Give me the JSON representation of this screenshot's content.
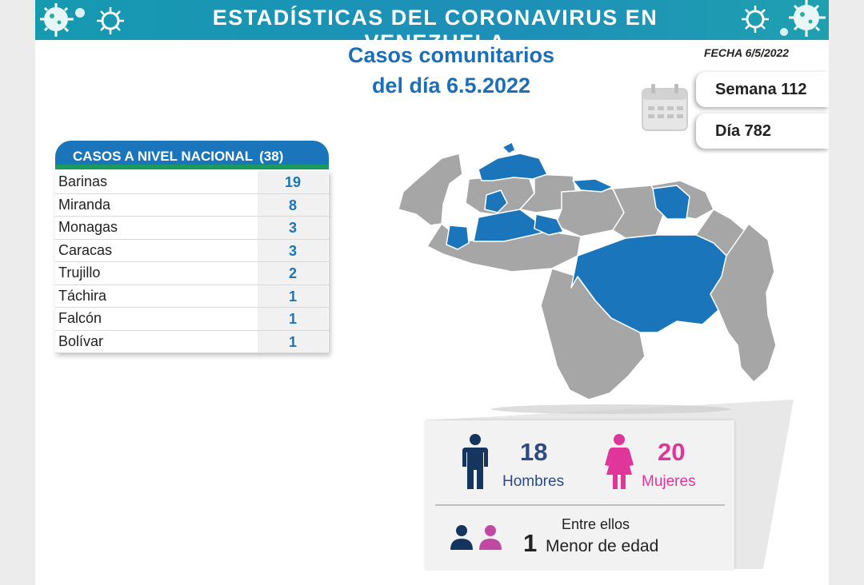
{
  "header": {
    "title": "ESTADÍSTICAS DEL CORONAVIRUS EN VENEZUELA",
    "subtitle_line1": "Casos comunitarios",
    "subtitle_line2": "del día 6.5.2022",
    "fecha": "FECHA 6/5/2022"
  },
  "badges": {
    "semana": "Semana 112",
    "dia": "Día 782"
  },
  "table": {
    "title": "CASOS A NIVEL NACIONAL",
    "total": "(38)",
    "rows": [
      {
        "state": "Barinas",
        "cases": "19"
      },
      {
        "state": "Miranda",
        "cases": "8"
      },
      {
        "state": "Monagas",
        "cases": "3"
      },
      {
        "state": "Caracas",
        "cases": "3"
      },
      {
        "state": "Trujillo",
        "cases": "2"
      },
      {
        "state": "Táchira",
        "cases": "1"
      },
      {
        "state": "Falcón",
        "cases": "1"
      },
      {
        "state": "Bolívar",
        "cases": "1"
      }
    ]
  },
  "stats": {
    "men_count": "18",
    "men_label": "Hombres",
    "women_count": "20",
    "women_label": "Mujeres",
    "between_label": "Entre ellos",
    "minor_count": "1",
    "minor_label": "Menor de edad"
  },
  "colors": {
    "banner": "#1d8fb8",
    "primary_blue": "#1b75ba",
    "green_accent": "#1a9a5e",
    "men": "#16355e",
    "women": "#e0369a",
    "map_highlight": "#1b75ba",
    "map_gray": "#a6a6a6"
  },
  "icons": {
    "virus": "virus-icon",
    "calendar": "calendar-icon",
    "man": "man-icon",
    "woman": "woman-icon"
  }
}
